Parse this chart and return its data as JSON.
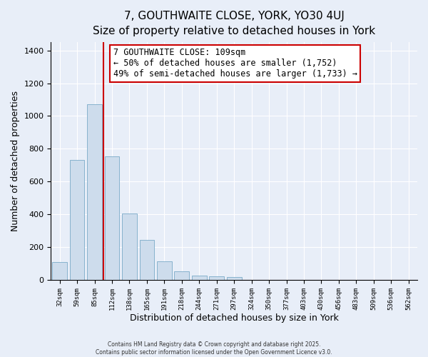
{
  "title": "7, GOUTHWAITE CLOSE, YORK, YO30 4UJ",
  "subtitle": "Size of property relative to detached houses in York",
  "xlabel": "Distribution of detached houses by size in York",
  "ylabel": "Number of detached properties",
  "bar_labels": [
    "32sqm",
    "59sqm",
    "85sqm",
    "112sqm",
    "138sqm",
    "165sqm",
    "191sqm",
    "218sqm",
    "244sqm",
    "271sqm",
    "297sqm",
    "324sqm",
    "350sqm",
    "377sqm",
    "403sqm",
    "430sqm",
    "456sqm",
    "483sqm",
    "509sqm",
    "536sqm",
    "562sqm"
  ],
  "bar_values": [
    108,
    730,
    1070,
    752,
    405,
    243,
    112,
    50,
    27,
    22,
    18,
    0,
    0,
    0,
    0,
    0,
    0,
    0,
    0,
    0,
    0
  ],
  "bar_color": "#cddcec",
  "bar_edge_color": "#7aaac8",
  "ylim": [
    0,
    1450
  ],
  "yticks": [
    0,
    200,
    400,
    600,
    800,
    1000,
    1200,
    1400
  ],
  "vline_color": "#cc0000",
  "vline_x_index": 3,
  "annotation_title": "7 GOUTHWAITE CLOSE: 109sqm",
  "annotation_line1": "← 50% of detached houses are smaller (1,752)",
  "annotation_line2": "49% of semi-detached houses are larger (1,733) →",
  "footnote1": "Contains HM Land Registry data © Crown copyright and database right 2025.",
  "footnote2": "Contains public sector information licensed under the Open Government Licence v3.0.",
  "bg_color": "#e8eef8",
  "plot_bg_color": "#e8eef8",
  "title_fontsize": 11,
  "annot_fontsize": 8.5
}
